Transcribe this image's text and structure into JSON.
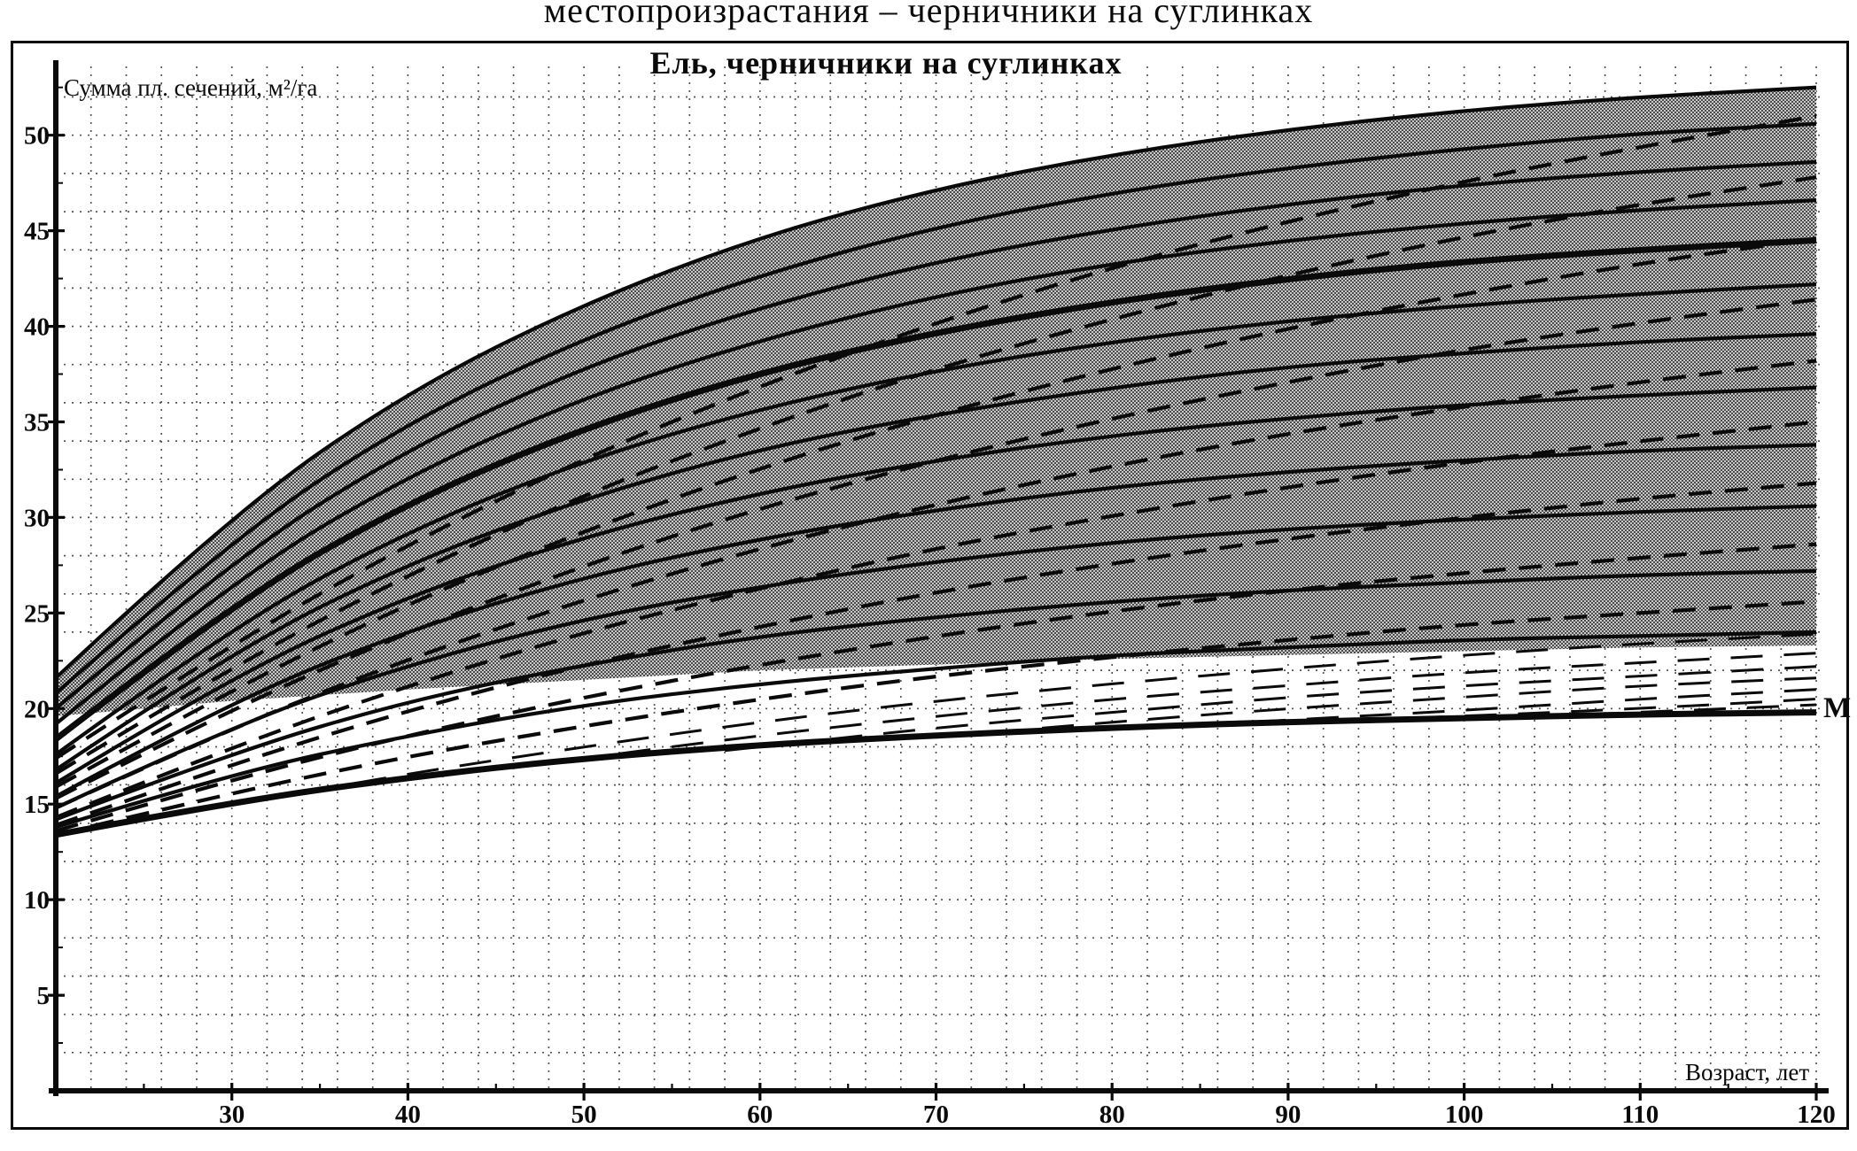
{
  "caption_top": "местопроизрастания – черничники на суглинках",
  "title": "Ель, черничники на суглинках",
  "axes": {
    "y_label": "Сумма пл. сечений, м²/га",
    "x_label": "Возраст, лет"
  },
  "m_curve_label": "М",
  "colors": {
    "ink": "#0a0a0a",
    "halftone_dark": "#4a4a4a",
    "halftone_light": "#c9c9c9",
    "grid": "#2b2b2b",
    "paper": "#ffffff"
  },
  "chart_data": {
    "type": "line",
    "title": "Ель, черничники на суглинках",
    "xlabel": "Возраст, лет",
    "ylabel": "Сумма пл. сечений, м²/га",
    "x_range": [
      20,
      120.3
    ],
    "y_range": [
      0,
      53.6
    ],
    "x_ticks": [
      30,
      40,
      50,
      60,
      70,
      80,
      90,
      100,
      110,
      120
    ],
    "y_ticks": [
      5,
      10,
      15,
      20,
      25,
      30,
      35,
      40,
      45,
      50
    ],
    "x_minor_step": 5,
    "y_minor_step": 2.5,
    "grid_step_x_years": 2,
    "grid_step_y_units": 2,
    "legend": "none",
    "shaded_region": {
      "description": "halftone gray zone between upper envelope curve and lower boundary curve",
      "upper": "solid_1_upper_envelope",
      "lower": "gray_zone_lower_boundary"
    },
    "x_common": [
      20,
      30,
      40,
      50,
      60,
      70,
      80,
      90,
      100,
      110,
      120
    ],
    "series": [
      {
        "name": "solid_1_upper_envelope",
        "style": "solid",
        "weight": "normal",
        "y": [
          21.6,
          30.2,
          36.6,
          41.2,
          44.7,
          47.2,
          49.0,
          50.3,
          51.3,
          52.0,
          52.5
        ]
      },
      {
        "name": "solid_2",
        "style": "solid",
        "weight": "normal",
        "y": [
          20.8,
          28.9,
          35.0,
          39.4,
          42.7,
          45.2,
          47.0,
          48.3,
          49.3,
          50.1,
          50.6
        ]
      },
      {
        "name": "solid_3",
        "style": "solid",
        "weight": "normal",
        "y": [
          20.0,
          27.8,
          33.6,
          37.9,
          41.0,
          43.4,
          45.1,
          46.4,
          47.4,
          48.1,
          48.6
        ]
      },
      {
        "name": "solid_4",
        "style": "solid",
        "weight": "normal",
        "y": [
          19.2,
          26.7,
          32.2,
          36.3,
          39.3,
          41.6,
          43.3,
          44.5,
          45.4,
          46.1,
          46.6
        ]
      },
      {
        "name": "solid_5_bold_middle",
        "style": "solid",
        "weight": "bold",
        "y": [
          18.4,
          25.5,
          30.8,
          34.7,
          37.6,
          39.7,
          41.3,
          42.5,
          43.4,
          44.0,
          44.5
        ]
      },
      {
        "name": "solid_6",
        "style": "solid",
        "weight": "normal",
        "y": [
          17.6,
          24.3,
          29.3,
          33.0,
          35.7,
          37.7,
          39.2,
          40.3,
          41.1,
          41.7,
          42.2
        ]
      },
      {
        "name": "solid_7",
        "style": "solid",
        "weight": "normal",
        "y": [
          16.8,
          23.0,
          27.6,
          31.0,
          33.6,
          35.4,
          36.8,
          37.9,
          38.6,
          39.2,
          39.6
        ]
      },
      {
        "name": "solid_8",
        "style": "solid",
        "weight": "normal",
        "y": [
          16.1,
          21.7,
          25.9,
          29.0,
          31.3,
          33.0,
          34.3,
          35.2,
          35.9,
          36.4,
          36.8
        ]
      },
      {
        "name": "solid_9",
        "style": "solid",
        "weight": "normal",
        "y": [
          15.4,
          20.4,
          24.1,
          26.9,
          28.9,
          30.4,
          31.6,
          32.4,
          33.0,
          33.5,
          33.8
        ]
      },
      {
        "name": "solid_10",
        "style": "solid",
        "weight": "normal",
        "y": [
          14.8,
          19.1,
          22.3,
          24.7,
          26.4,
          27.7,
          28.7,
          29.4,
          29.9,
          30.3,
          30.6
        ]
      },
      {
        "name": "solid_11",
        "style": "solid",
        "weight": "normal",
        "y": [
          14.2,
          17.7,
          20.4,
          22.3,
          23.8,
          24.8,
          25.6,
          26.2,
          26.6,
          27.0,
          27.2
        ]
      },
      {
        "name": "solid_12",
        "style": "solid",
        "weight": "normal",
        "y": [
          13.8,
          16.6,
          18.6,
          20.2,
          21.3,
          22.1,
          22.8,
          23.2,
          23.6,
          23.8,
          24.0
        ]
      },
      {
        "name": "gray_zone_lower_boundary",
        "style": "boundary",
        "weight": "none",
        "y": [
          19.6,
          20.4,
          21.0,
          21.5,
          22.0,
          22.3,
          22.6,
          22.8,
          23.0,
          23.2,
          23.3
        ]
      },
      {
        "name": "dashed_1",
        "style": "dashed",
        "weight": "normal",
        "y": [
          17.4,
          23.4,
          28.6,
          33.1,
          36.9,
          40.2,
          43.1,
          45.5,
          47.6,
          49.4,
          51.0
        ]
      },
      {
        "name": "dashed_2",
        "style": "dashed",
        "weight": "normal",
        "y": [
          16.6,
          22.2,
          27.0,
          31.2,
          34.7,
          37.8,
          40.4,
          42.7,
          44.7,
          46.4,
          47.8
        ]
      },
      {
        "name": "dashed_3",
        "style": "dashed",
        "weight": "normal",
        "y": [
          15.9,
          21.0,
          25.5,
          29.3,
          32.6,
          35.4,
          37.8,
          39.9,
          41.7,
          43.3,
          44.6
        ]
      },
      {
        "name": "dashed_4",
        "style": "dashed",
        "weight": "normal",
        "y": [
          15.3,
          20.0,
          24.0,
          27.5,
          30.5,
          33.0,
          35.2,
          37.1,
          38.8,
          40.2,
          41.4
        ]
      },
      {
        "name": "dashed_5",
        "style": "dashed",
        "weight": "normal",
        "y": [
          14.8,
          19.0,
          22.6,
          25.7,
          28.4,
          30.7,
          32.7,
          34.4,
          35.8,
          37.1,
          38.2
        ]
      },
      {
        "name": "dashed_6",
        "style": "dashed",
        "weight": "normal",
        "y": [
          14.3,
          18.0,
          21.2,
          24.0,
          26.3,
          28.4,
          30.1,
          31.6,
          32.9,
          34.0,
          35.0
        ]
      },
      {
        "name": "dashed_7",
        "style": "dashed",
        "weight": "normal",
        "y": [
          13.9,
          17.1,
          19.9,
          22.3,
          24.3,
          26.1,
          27.6,
          28.9,
          30.0,
          31.0,
          31.8
        ]
      },
      {
        "name": "dashed_8",
        "style": "dashed",
        "weight": "normal",
        "y": [
          13.6,
          16.3,
          18.6,
          20.6,
          22.3,
          23.8,
          25.1,
          26.2,
          27.1,
          27.9,
          28.6
        ]
      },
      {
        "name": "dashed_9",
        "style": "dashed",
        "weight": "normal",
        "y": [
          13.4,
          15.6,
          17.5,
          19.1,
          20.5,
          21.7,
          22.7,
          23.6,
          24.4,
          25.0,
          25.6
        ]
      },
      {
        "name": "dashed_band_10",
        "style": "dashed",
        "weight": "thin",
        "x": [
          34,
          40,
          50,
          60,
          70,
          80,
          90,
          100,
          110,
          120
        ],
        "y": [
          15.6,
          16.6,
          18.0,
          19.3,
          20.4,
          21.3,
          22.1,
          22.8,
          23.4,
          23.9
        ]
      },
      {
        "name": "dashed_band_11",
        "style": "dashed",
        "weight": "thin",
        "x": [
          46,
          50,
          60,
          70,
          80,
          90,
          100,
          110,
          120
        ],
        "y": [
          16.9,
          17.4,
          18.6,
          19.6,
          20.5,
          21.2,
          21.9,
          22.4,
          22.9
        ]
      },
      {
        "name": "dashed_band_12",
        "style": "dashed",
        "weight": "thin",
        "x": [
          58,
          60,
          70,
          80,
          90,
          100,
          110,
          120
        ],
        "y": [
          17.8,
          18.0,
          19.0,
          19.8,
          20.6,
          21.2,
          21.7,
          22.2
        ]
      },
      {
        "name": "dashed_band_13",
        "style": "dashed",
        "weight": "thin",
        "x": [
          70,
          80,
          90,
          100,
          110,
          120
        ],
        "y": [
          18.5,
          19.3,
          20.0,
          20.6,
          21.2,
          21.6
        ]
      },
      {
        "name": "dashed_band_14",
        "style": "dashed",
        "weight": "thin",
        "x": [
          82,
          90,
          100,
          110,
          120
        ],
        "y": [
          19.0,
          19.4,
          19.9,
          20.5,
          21.0
        ]
      },
      {
        "name": "dashed_band_15",
        "style": "dashed",
        "weight": "thin",
        "x": [
          94,
          100,
          110,
          120
        ],
        "y": [
          19.4,
          19.6,
          20.0,
          20.5
        ]
      },
      {
        "name": "dashed_band_16",
        "style": "dashed",
        "weight": "thin",
        "x": [
          104,
          110,
          120
        ],
        "y": [
          19.6,
          19.8,
          20.2
        ]
      },
      {
        "name": "M_mortality_curve",
        "style": "solid",
        "weight": "bold",
        "label": "М",
        "y": [
          13.4,
          15.1,
          16.4,
          17.4,
          18.1,
          18.6,
          19.0,
          19.3,
          19.5,
          19.7,
          19.8
        ]
      }
    ]
  }
}
